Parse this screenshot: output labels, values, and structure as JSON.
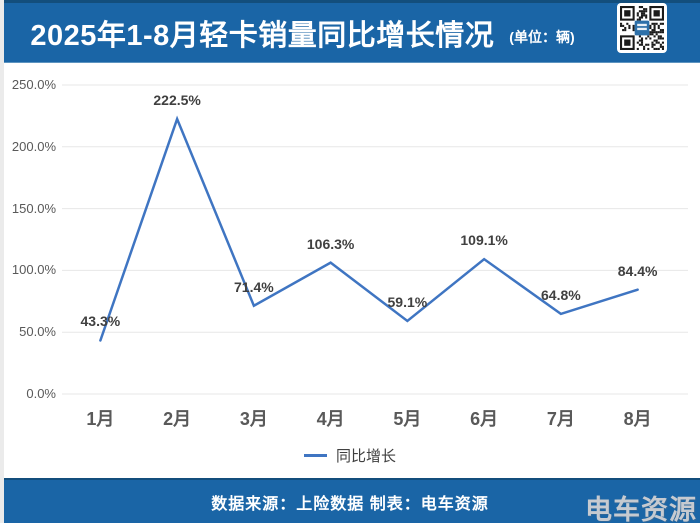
{
  "header": {
    "title": "2025年1-8月轻卡销量同比增长情况",
    "unit_label": "(单位：辆)"
  },
  "chart_data": {
    "type": "line",
    "title": "2025年1-8月轻卡销量同比增长情况",
    "categories": [
      "1月",
      "2月",
      "3月",
      "4月",
      "5月",
      "6月",
      "7月",
      "8月"
    ],
    "series": [
      {
        "name": "同比增长",
        "values": [
          43.3,
          222.5,
          71.4,
          106.3,
          59.1,
          109.1,
          64.8,
          84.4
        ]
      }
    ],
    "data_labels": [
      "43.3%",
      "222.5%",
      "71.4%",
      "106.3%",
      "59.1%",
      "109.1%",
      "64.8%",
      "84.4%"
    ],
    "xlabel": "",
    "ylabel": "",
    "ylim": [
      0,
      250
    ],
    "ytick_step": 50,
    "ytick_labels": [
      "0.0%",
      "50.0%",
      "100.0%",
      "150.0%",
      "200.0%",
      "250.0%"
    ],
    "grid": true,
    "legend_position": "bottom",
    "line_color": "#3f75c2"
  },
  "footer": {
    "text": "数据来源：上险数据  制表：电车资源",
    "watermark": "电车资源"
  },
  "icons": {
    "header_qr": "qr-code"
  },
  "colors": {
    "header_bg": "#1a65a6",
    "footer_bg": "#1a65a6",
    "dark_border": "#134e7c",
    "line": "#3f75c2",
    "grid": "#e7e7e7",
    "data_label": "#404040",
    "axis_label": "#595959",
    "watermark": "#c6cad0"
  }
}
